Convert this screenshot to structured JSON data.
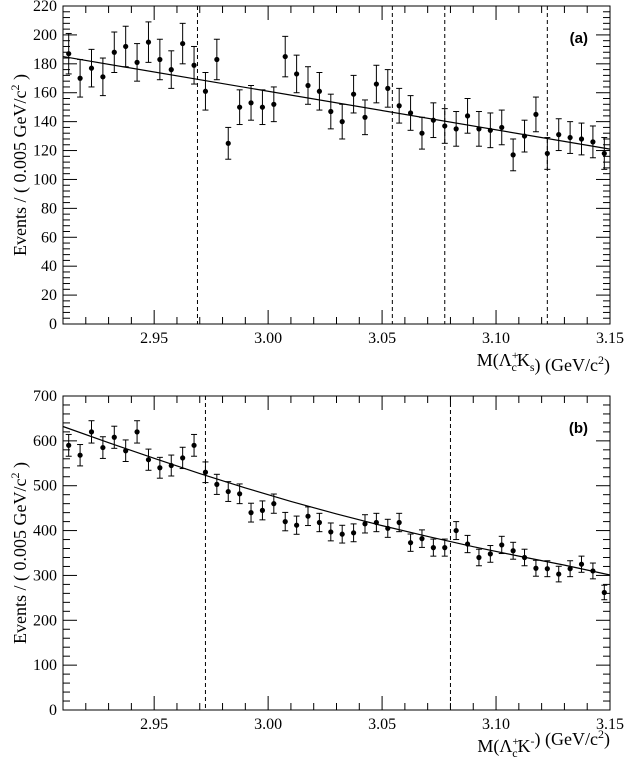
{
  "chart_data": [
    {
      "type": "scatter",
      "panel_label": "(a)",
      "ylabel_parts": [
        "Events / ( 0.005 GeV/c",
        "2",
        " )"
      ],
      "xlabel_parts": {
        "pre": "M(",
        "lambda": "Λ",
        "sub": "c",
        "sup": "+",
        "mid": "K",
        "msub": "s",
        "post": ") (GeV/c",
        "post_sup": "2",
        "end": ")"
      },
      "xlim": [
        2.91,
        3.15
      ],
      "ylim": [
        0,
        220
      ],
      "x_ticks": [
        "2.95",
        "3.00",
        "3.05",
        "3.10",
        "3.15"
      ],
      "x_tick_values": [
        2.95,
        3.0,
        3.05,
        3.1,
        3.15
      ],
      "y_ticks": [
        "0",
        "20",
        "40",
        "60",
        "80",
        "100",
        "120",
        "140",
        "160",
        "180",
        "200",
        "220"
      ],
      "y_tick_values": [
        0,
        20,
        40,
        60,
        80,
        100,
        120,
        140,
        160,
        180,
        200,
        220
      ],
      "vertical_lines": [
        2.969,
        3.0545,
        3.0775,
        3.1225
      ],
      "fit_line": {
        "x": [
          2.91,
          3.15
        ],
        "y": [
          185,
          121
        ]
      },
      "series": [
        {
          "x": [
            2.9125,
            2.9175,
            2.9225,
            2.9275,
            2.9325,
            2.9375,
            2.9425,
            2.9475,
            2.9525,
            2.9575,
            2.9625,
            2.9675,
            2.9725,
            2.9775,
            2.9825,
            2.9875,
            2.9925,
            2.9975,
            3.0025,
            3.0075,
            3.0125,
            3.0175,
            3.0225,
            3.0275,
            3.0325,
            3.0375,
            3.0425,
            3.0475,
            3.0525,
            3.0575,
            3.0625,
            3.0675,
            3.0725,
            3.0775,
            3.0825,
            3.0875,
            3.0925,
            3.0975,
            3.1025,
            3.1075,
            3.1125,
            3.1175,
            3.1225,
            3.1275,
            3.1325,
            3.1375,
            3.1425,
            3.1475
          ],
          "y": [
            187,
            170,
            177,
            171,
            188,
            192,
            181,
            195,
            183,
            176,
            194,
            179,
            161,
            183,
            125,
            150,
            153,
            150,
            152,
            185,
            173,
            165,
            161,
            147,
            140,
            159,
            143,
            166,
            163,
            151,
            146,
            132,
            141,
            137,
            135,
            144,
            135,
            134,
            136,
            117,
            130,
            145,
            118,
            131,
            129,
            128,
            126,
            118
          ],
          "yerr": [
            14,
            13,
            13,
            13,
            14,
            14,
            13,
            14,
            14,
            13,
            14,
            13,
            13,
            14,
            11,
            12,
            12,
            12,
            12,
            14,
            13,
            13,
            13,
            12,
            12,
            13,
            12,
            13,
            13,
            12,
            12,
            11,
            12,
            12,
            12,
            12,
            12,
            12,
            12,
            11,
            11,
            12,
            11,
            11,
            11,
            11,
            11,
            11
          ]
        }
      ]
    },
    {
      "type": "scatter",
      "panel_label": "(b)",
      "ylabel_parts": [
        "Events / ( 0.005 GeV/c",
        "2",
        " )"
      ],
      "xlabel_parts": {
        "pre": "M(",
        "lambda": "Λ",
        "sub": "c",
        "sup": "+",
        "mid": "K",
        "msub": "",
        "msup": "-",
        "post": ") (GeV/c",
        "post_sup": "2",
        "end": ")"
      },
      "xlim": [
        2.91,
        3.15
      ],
      "ylim": [
        0,
        700
      ],
      "x_ticks": [
        "2.95",
        "3.00",
        "3.05",
        "3.10",
        "3.15"
      ],
      "x_tick_values": [
        2.95,
        3.0,
        3.05,
        3.1,
        3.15
      ],
      "y_ticks": [
        "0",
        "100",
        "200",
        "300",
        "400",
        "500",
        "600",
        "700"
      ],
      "y_tick_values": [
        0,
        100,
        200,
        300,
        400,
        500,
        600,
        700
      ],
      "vertical_lines": [
        2.9725,
        3.08
      ],
      "fit_curve": {
        "x": [
          2.91,
          2.93,
          2.95,
          2.97,
          2.99,
          3.01,
          3.03,
          3.05,
          3.07,
          3.09,
          3.11,
          3.13,
          3.15
        ],
        "y": [
          632,
          596,
          561,
          527,
          495,
          465,
          437,
          411,
          387,
          364,
          343,
          323,
          301
        ]
      },
      "series": [
        {
          "x": [
            2.9125,
            2.9175,
            2.9225,
            2.9275,
            2.9325,
            2.9375,
            2.9425,
            2.9475,
            2.9525,
            2.9575,
            2.9625,
            2.9675,
            2.9725,
            2.9775,
            2.9825,
            2.9875,
            2.9925,
            2.9975,
            3.0025,
            3.0075,
            3.0125,
            3.0175,
            3.0225,
            3.0275,
            3.0325,
            3.0375,
            3.0425,
            3.0475,
            3.0525,
            3.0575,
            3.0625,
            3.0675,
            3.0725,
            3.0775,
            3.0825,
            3.0875,
            3.0925,
            3.0975,
            3.1025,
            3.1075,
            3.1125,
            3.1175,
            3.1225,
            3.1275,
            3.1325,
            3.1375,
            3.1425,
            3.1475
          ],
          "y": [
            590,
            568,
            620,
            585,
            608,
            578,
            620,
            558,
            540,
            545,
            562,
            590,
            530,
            503,
            487,
            482,
            440,
            445,
            460,
            420,
            412,
            432,
            418,
            397,
            392,
            395,
            415,
            418,
            405,
            418,
            373,
            382,
            362,
            362,
            400,
            370,
            340,
            348,
            368,
            355,
            340,
            316,
            315,
            303,
            315,
            325,
            310,
            262
          ]
        }
      ]
    }
  ]
}
